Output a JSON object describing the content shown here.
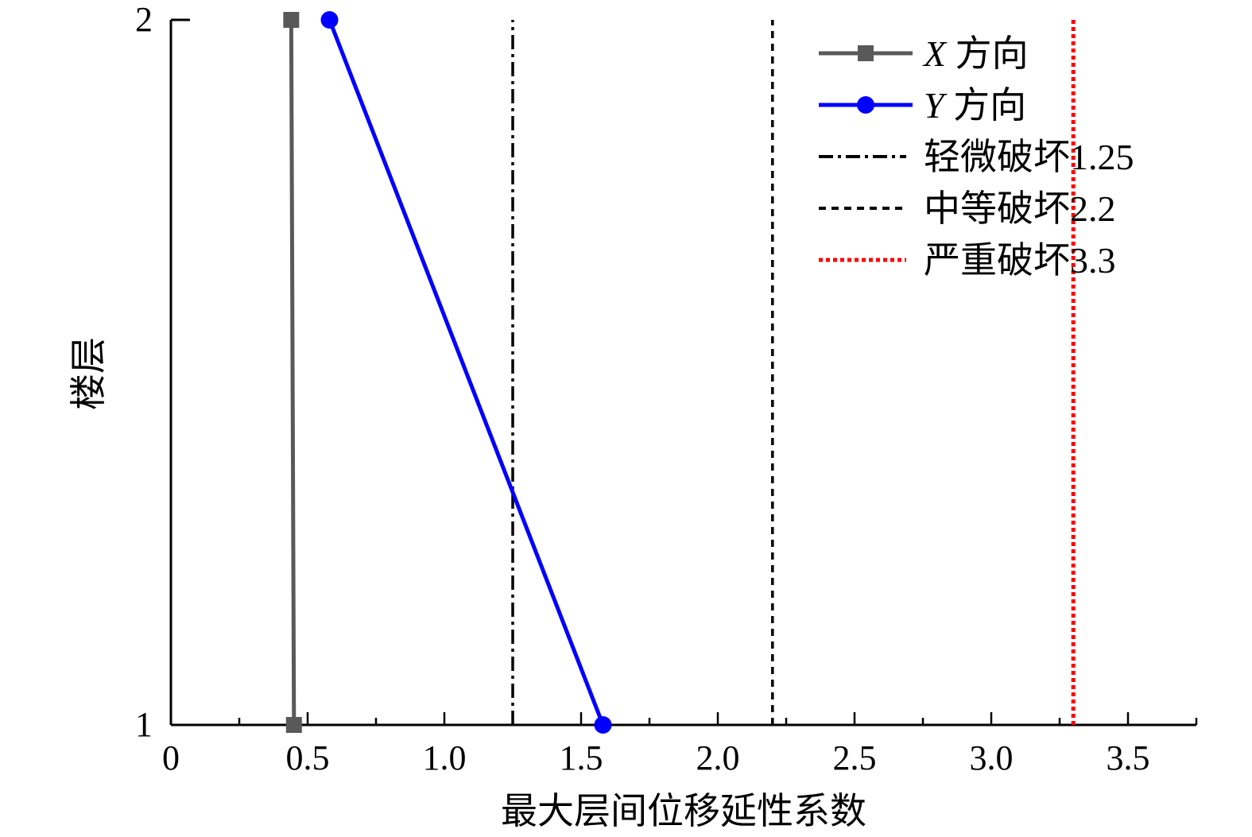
{
  "chart_data": {
    "type": "line",
    "title": "",
    "xlabel": "最大层间位移延性系数",
    "ylabel": "楼层",
    "xlim": [
      0,
      3.75
    ],
    "ylim": [
      1,
      2
    ],
    "x_ticks": [
      0,
      0.5,
      1.0,
      1.5,
      2.0,
      2.5,
      3.0,
      3.5
    ],
    "x_tick_labels": [
      "0",
      "0.5",
      "1.0",
      "1.5",
      "2.0",
      "2.5",
      "3.0",
      "3.5"
    ],
    "y_ticks": [
      1,
      2
    ],
    "y_tick_labels": [
      "1",
      "2"
    ],
    "grid": false,
    "legend_position": "top-right",
    "series": [
      {
        "name": "X 方向",
        "name_italic": "X",
        "name_rest": "方向",
        "color": "#595959",
        "marker": "square",
        "line_style": "solid",
        "points": [
          {
            "x": 0.45,
            "y": 1
          },
          {
            "x": 0.44,
            "y": 2
          }
        ]
      },
      {
        "name": "Y 方向",
        "name_italic": "Y",
        "name_rest": "方向",
        "color": "#0000ff",
        "marker": "circle",
        "line_style": "solid",
        "points": [
          {
            "x": 1.58,
            "y": 1
          },
          {
            "x": 0.58,
            "y": 2
          }
        ]
      }
    ],
    "reference_lines": [
      {
        "name": "轻微破坏1.25",
        "x": 1.25,
        "color": "#000000",
        "line_style": "dashdot"
      },
      {
        "name": "中等破坏2.2",
        "x": 2.2,
        "color": "#000000",
        "line_style": "dashed"
      },
      {
        "name": "严重破坏3.3",
        "x": 3.3,
        "color": "#ff0000",
        "line_style": "dotted"
      }
    ]
  }
}
